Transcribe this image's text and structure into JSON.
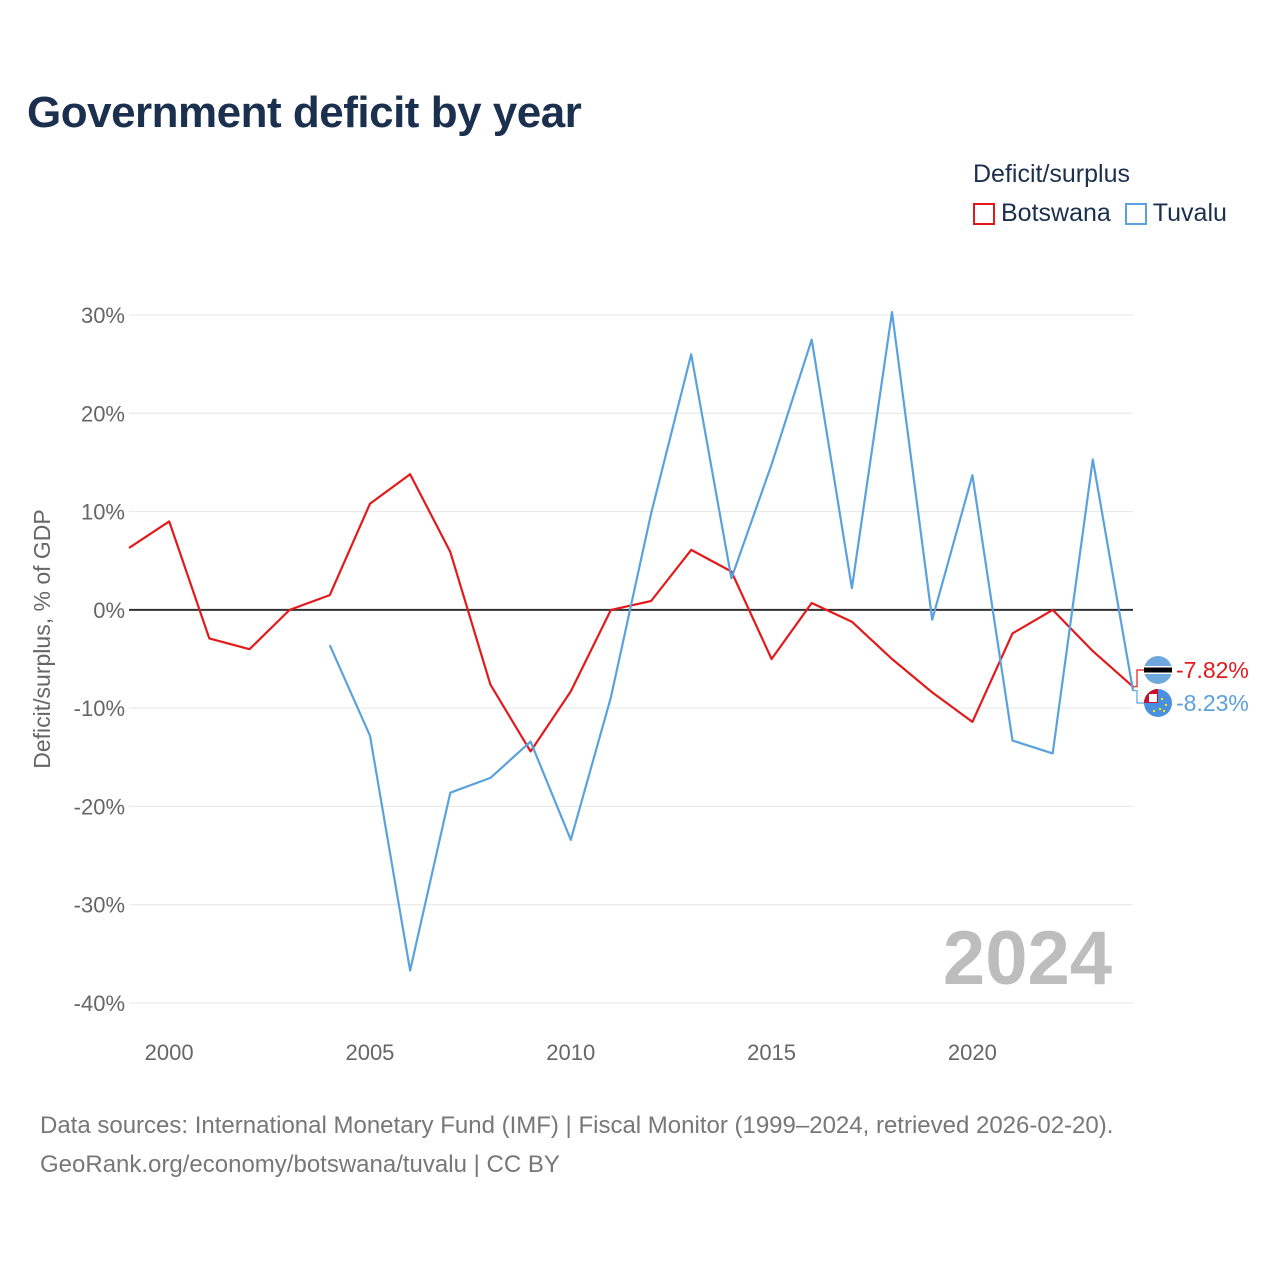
{
  "title": "Government deficit by year",
  "legend": {
    "title": "Deficit/surplus",
    "items": [
      {
        "label": "Botswana",
        "color": "#e31a1c"
      },
      {
        "label": "Tuvalu",
        "color": "#5aa2dd"
      }
    ]
  },
  "watermark_year": "2024",
  "footer": {
    "line1": "Data sources: International Monetary Fund (IMF) | Fiscal Monitor (1999–2024, retrieved 2026-02-20).",
    "line2": "GeoRank.org/economy/botswana/tuvalu | CC BY"
  },
  "chart_data": {
    "type": "line",
    "title": "Government deficit by year",
    "xlabel": "",
    "ylabel": "Deficit/surplus, % of GDP",
    "xlim": [
      1999,
      2024
    ],
    "ylim": [
      -40,
      30
    ],
    "x_ticks": [
      2000,
      2005,
      2010,
      2015,
      2020
    ],
    "x_tick_labels": [
      "2000",
      "2005",
      "2010",
      "2015",
      "2020"
    ],
    "y_ticks": [
      30,
      20,
      10,
      0,
      -10,
      -20,
      -30,
      -40
    ],
    "y_tick_labels": [
      "30%",
      "20%",
      "10%",
      "0%",
      "-10%",
      "-20%",
      "-30%",
      "-40%"
    ],
    "zero_line": true,
    "grid": true,
    "legend_position": "top-right",
    "series": [
      {
        "name": "Botswana",
        "color": "#e31a1c",
        "end_label": "-7.82%",
        "x": [
          1999,
          2000,
          2001,
          2002,
          2003,
          2004,
          2005,
          2006,
          2007,
          2008,
          2009,
          2010,
          2011,
          2012,
          2013,
          2014,
          2015,
          2016,
          2017,
          2018,
          2019,
          2020,
          2021,
          2022,
          2023,
          2024
        ],
        "values": [
          6.3,
          9.0,
          -2.9,
          -4.0,
          0.0,
          1.5,
          10.8,
          13.8,
          5.9,
          -7.6,
          -14.4,
          -8.3,
          0.0,
          0.9,
          6.1,
          3.9,
          -5.0,
          0.7,
          -1.2,
          -5.0,
          -8.4,
          -11.4,
          -2.4,
          0.0,
          -4.2,
          -7.82
        ]
      },
      {
        "name": "Tuvalu",
        "color": "#5aa2dd",
        "end_label": "-8.23%",
        "x": [
          2004,
          2005,
          2006,
          2007,
          2008,
          2009,
          2010,
          2011,
          2012,
          2013,
          2014,
          2015,
          2016,
          2017,
          2018,
          2019,
          2020,
          2021,
          2022,
          2023,
          2024
        ],
        "values": [
          -3.6,
          -12.8,
          -36.7,
          -18.6,
          -17.1,
          -13.4,
          -23.4,
          -8.9,
          9.8,
          26.0,
          3.2,
          14.8,
          27.5,
          2.2,
          30.3,
          -1.0,
          13.7,
          -13.3,
          -14.6,
          15.3,
          -8.23
        ]
      }
    ]
  }
}
